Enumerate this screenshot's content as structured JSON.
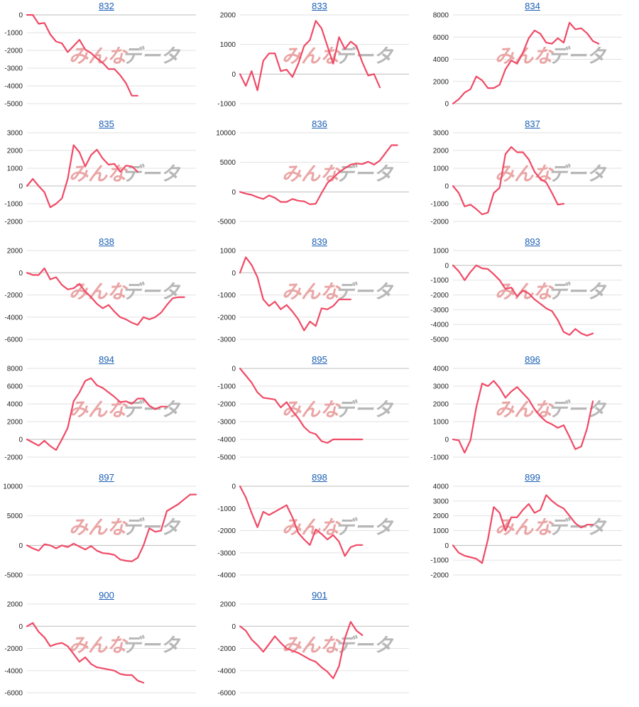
{
  "watermark": {
    "part1": "みんな",
    "part2": "データ"
  },
  "colors": {
    "series": "#f04a66",
    "title_link": "#1a5fb4",
    "grid": "#e2e2e2",
    "zero_line": "#bdbdbd"
  },
  "chart_data": [
    {
      "type": "line",
      "title": "832",
      "ylim": [
        -5000,
        0
      ],
      "yticks": [
        0,
        -1000,
        -2000,
        -3000,
        -4000,
        -5000
      ],
      "x": [
        1,
        2,
        3,
        4,
        5,
        6,
        7,
        8,
        9,
        10,
        11,
        12,
        13,
        14,
        15,
        16,
        17,
        18,
        19,
        20
      ],
      "values": [
        0,
        0,
        -500,
        -450,
        -1100,
        -1500,
        -1600,
        -2100,
        -1750,
        -1400,
        -1950,
        -2150,
        -2450,
        -2700,
        -3050,
        -3050,
        -3400,
        -3850,
        -4550,
        -4550
      ]
    },
    {
      "type": "line",
      "title": "833",
      "ylim": [
        -1000,
        2000
      ],
      "yticks": [
        2000,
        1000,
        0,
        -1000
      ],
      "x": [
        1,
        2,
        3,
        4,
        5,
        6,
        7,
        8,
        9,
        10,
        11,
        12,
        13,
        14,
        15,
        16,
        17,
        18,
        19,
        20,
        21,
        22,
        23,
        24,
        25
      ],
      "values": [
        0,
        -400,
        100,
        -550,
        450,
        700,
        700,
        100,
        150,
        -100,
        350,
        950,
        1150,
        1800,
        1550,
        950,
        350,
        1250,
        850,
        1100,
        950,
        400,
        -50,
        0,
        -450
      ]
    },
    {
      "type": "line",
      "title": "834",
      "ylim": [
        0,
        8000
      ],
      "yticks": [
        8000,
        6000,
        4000,
        2000,
        0
      ],
      "x": [
        1,
        2,
        3,
        4,
        5,
        6,
        7,
        8,
        9,
        10,
        11,
        12,
        13,
        14,
        15,
        16,
        17,
        18,
        19,
        20,
        21,
        22,
        23,
        24,
        25,
        26
      ],
      "values": [
        0,
        400,
        1000,
        1300,
        2450,
        2100,
        1400,
        1400,
        1700,
        3100,
        3900,
        3600,
        4600,
        5900,
        6600,
        6300,
        5500,
        5400,
        5900,
        5500,
        7300,
        6700,
        6800,
        6350,
        5650,
        5400
      ]
    },
    {
      "type": "line",
      "title": "835",
      "ylim": [
        -2000,
        3000
      ],
      "yticks": [
        3000,
        2000,
        1000,
        0,
        -1000,
        -2000
      ],
      "x": [
        1,
        2,
        3,
        4,
        5,
        6,
        7,
        8,
        9,
        10,
        11,
        12,
        13,
        14,
        15,
        16,
        17,
        18,
        19,
        20
      ],
      "values": [
        0,
        400,
        0,
        -350,
        -1200,
        -1000,
        -700,
        400,
        2300,
        1900,
        1100,
        1750,
        2050,
        1550,
        1200,
        1250,
        800,
        1150,
        1100,
        800
      ]
    },
    {
      "type": "line",
      "title": "836",
      "ylim": [
        -5000,
        10000
      ],
      "yticks": [
        10000,
        5000,
        0,
        -5000
      ],
      "x": [
        1,
        2,
        3,
        4,
        5,
        6,
        7,
        8,
        9,
        10,
        11,
        12,
        13,
        14,
        15,
        16,
        17,
        18,
        19,
        20,
        21,
        22,
        23,
        24,
        25,
        26,
        27,
        28
      ],
      "values": [
        0,
        -300,
        -500,
        -900,
        -1200,
        -600,
        -1000,
        -1700,
        -1700,
        -1200,
        -1500,
        -1600,
        -2100,
        -2000,
        -200,
        1500,
        2400,
        3300,
        4000,
        4600,
        4800,
        4700,
        5100,
        4600,
        5300,
        6600,
        7900,
        7900
      ]
    },
    {
      "type": "line",
      "title": "837",
      "ylim": [
        -2000,
        3000
      ],
      "yticks": [
        3000,
        2000,
        1000,
        0,
        -1000,
        -2000
      ],
      "x": [
        1,
        2,
        3,
        4,
        5,
        6,
        7,
        8,
        9,
        10,
        11,
        12,
        13,
        14,
        15,
        16,
        17,
        18,
        19,
        20
      ],
      "values": [
        0,
        -400,
        -1150,
        -1050,
        -1300,
        -1600,
        -1500,
        -400,
        -100,
        1800,
        2200,
        1900,
        1900,
        1500,
        800,
        400,
        200,
        -400,
        -1050,
        -1000
      ]
    },
    {
      "type": "line",
      "title": "838",
      "ylim": [
        -6000,
        2000
      ],
      "yticks": [
        2000,
        0,
        -2000,
        -4000,
        -6000
      ],
      "x": [
        1,
        2,
        3,
        4,
        5,
        6,
        7,
        8,
        9,
        10,
        11,
        12,
        13,
        14,
        15,
        16,
        17,
        18,
        19,
        20,
        21,
        22,
        23,
        24,
        25,
        26,
        27,
        28
      ],
      "values": [
        0,
        -200,
        -200,
        400,
        -600,
        -400,
        -1100,
        -1500,
        -1400,
        -1000,
        -1700,
        -2200,
        -2800,
        -3200,
        -2900,
        -3500,
        -4000,
        -4200,
        -4500,
        -4700,
        -4000,
        -4200,
        -4000,
        -3600,
        -2900,
        -2300,
        -2200,
        -2200
      ]
    },
    {
      "type": "line",
      "title": "839",
      "ylim": [
        -3000,
        1000
      ],
      "yticks": [
        1000,
        0,
        -1000,
        -2000,
        -3000
      ],
      "x": [
        1,
        2,
        3,
        4,
        5,
        6,
        7,
        8,
        9,
        10,
        11,
        12,
        13,
        14,
        15,
        16,
        17,
        18,
        19,
        20
      ],
      "values": [
        0,
        700,
        350,
        -200,
        -1200,
        -1500,
        -1300,
        -1650,
        -1450,
        -1750,
        -2100,
        -2600,
        -2200,
        -2400,
        -1600,
        -1650,
        -1500,
        -1200,
        -1200,
        -1200
      ]
    },
    {
      "type": "line",
      "title": "893",
      "ylim": [
        -5000,
        1000
      ],
      "yticks": [
        1000,
        0,
        -1000,
        -2000,
        -3000,
        -4000,
        -5000
      ],
      "x": [
        1,
        2,
        3,
        4,
        5,
        6,
        7,
        8,
        9,
        10,
        11,
        12,
        13,
        14,
        15,
        16,
        17,
        18,
        19,
        20,
        21,
        22,
        23,
        24,
        25
      ],
      "values": [
        0,
        -400,
        -1000,
        -450,
        0,
        -200,
        -250,
        -600,
        -1000,
        -1600,
        -1500,
        -2100,
        -1700,
        -1900,
        -2300,
        -2600,
        -2900,
        -3100,
        -3700,
        -4500,
        -4700,
        -4300,
        -4600,
        -4750,
        -4600
      ]
    },
    {
      "type": "line",
      "title": "894",
      "ylim": [
        -2000,
        8000
      ],
      "yticks": [
        8000,
        6000,
        4000,
        2000,
        0,
        -2000
      ],
      "x": [
        1,
        2,
        3,
        4,
        5,
        6,
        7,
        8,
        9,
        10,
        11,
        12,
        13,
        14,
        15,
        16,
        17,
        18,
        19,
        20,
        21,
        22,
        23,
        24,
        25
      ],
      "values": [
        0,
        -350,
        -700,
        -150,
        -750,
        -1200,
        0,
        1300,
        4300,
        5300,
        6600,
        6900,
        6100,
        5800,
        5300,
        4800,
        4200,
        4300,
        4000,
        4600,
        4600,
        3800,
        3400,
        3700,
        3700
      ]
    },
    {
      "type": "line",
      "title": "895",
      "ylim": [
        -5000,
        0
      ],
      "yticks": [
        0,
        -1000,
        -2000,
        -3000,
        -4000,
        -5000
      ],
      "x": [
        1,
        2,
        3,
        4,
        5,
        6,
        7,
        8,
        9,
        10,
        11,
        12,
        13,
        14,
        15,
        16,
        17,
        18,
        19,
        20,
        21,
        22
      ],
      "values": [
        0,
        -400,
        -800,
        -1350,
        -1650,
        -1700,
        -1750,
        -2200,
        -1900,
        -2400,
        -2800,
        -3300,
        -3600,
        -3700,
        -4100,
        -4200,
        -4000,
        -4000,
        -4000,
        -4000,
        -4000,
        -4000
      ]
    },
    {
      "type": "line",
      "title": "896",
      "ylim": [
        -1000,
        4000
      ],
      "yticks": [
        4000,
        3000,
        2000,
        1000,
        0,
        -1000
      ],
      "x": [
        1,
        2,
        3,
        4,
        5,
        6,
        7,
        8,
        9,
        10,
        11,
        12,
        13,
        14,
        15,
        16,
        17,
        18,
        19,
        20,
        21,
        22,
        23,
        24,
        25
      ],
      "values": [
        0,
        -50,
        -750,
        -50,
        1800,
        3150,
        3000,
        3300,
        2900,
        2350,
        2700,
        2950,
        2600,
        2250,
        1700,
        1300,
        1000,
        850,
        650,
        800,
        150,
        -550,
        -400,
        600,
        2150
      ]
    },
    {
      "type": "line",
      "title": "897",
      "ylim": [
        -5000,
        10000
      ],
      "yticks": [
        10000,
        5000,
        0,
        -5000
      ],
      "x": [
        1,
        2,
        3,
        4,
        5,
        6,
        7,
        8,
        9,
        10,
        11,
        12,
        13,
        14,
        15,
        16,
        17,
        18,
        19,
        20,
        21,
        22,
        23,
        24,
        25,
        26,
        27,
        28,
        29,
        30
      ],
      "values": [
        0,
        -500,
        -900,
        200,
        0,
        -500,
        0,
        -300,
        300,
        -200,
        -700,
        -100,
        -900,
        -1300,
        -1400,
        -1600,
        -2400,
        -2600,
        -2700,
        -2100,
        0,
        2900,
        2300,
        2500,
        5800,
        6400,
        7000,
        7800,
        8600,
        8600
      ]
    },
    {
      "type": "line",
      "title": "898",
      "ylim": [
        -4000,
        0
      ],
      "yticks": [
        0,
        -1000,
        -2000,
        -3000,
        -4000
      ],
      "x": [
        1,
        2,
        3,
        4,
        5,
        6,
        7,
        8,
        9,
        10,
        11,
        12,
        13,
        14,
        15,
        16,
        17,
        18,
        19,
        20,
        21,
        22
      ],
      "values": [
        0,
        -500,
        -1200,
        -1850,
        -1150,
        -1300,
        -1150,
        -1000,
        -850,
        -1400,
        -2100,
        -2400,
        -2650,
        -1950,
        -2150,
        -2400,
        -2200,
        -2500,
        -3150,
        -2750,
        -2650,
        -2650
      ]
    },
    {
      "type": "line",
      "title": "899",
      "ylim": [
        -2000,
        4000
      ],
      "yticks": [
        4000,
        3000,
        2000,
        1000,
        0,
        -1000,
        -2000
      ],
      "x": [
        1,
        2,
        3,
        4,
        5,
        6,
        7,
        8,
        9,
        10,
        11,
        12,
        13,
        14,
        15,
        16,
        17,
        18,
        19,
        20,
        21,
        22,
        23,
        24,
        25
      ],
      "values": [
        0,
        -500,
        -700,
        -800,
        -900,
        -1200,
        400,
        2600,
        2200,
        1000,
        1900,
        1900,
        2400,
        2800,
        2200,
        2400,
        3400,
        3000,
        2700,
        2500,
        2000,
        1500,
        1200,
        1400,
        1400
      ]
    },
    {
      "type": "line",
      "title": "900",
      "ylim": [
        -6000,
        2000
      ],
      "yticks": [
        2000,
        0,
        -2000,
        -4000,
        -6000
      ],
      "x": [
        1,
        2,
        3,
        4,
        5,
        6,
        7,
        8,
        9,
        10,
        11,
        12,
        13,
        14,
        15,
        16,
        17,
        18,
        19,
        20,
        21
      ],
      "values": [
        0,
        300,
        -500,
        -1000,
        -1800,
        -1600,
        -1500,
        -1800,
        -2500,
        -3200,
        -2800,
        -3400,
        -3700,
        -3800,
        -3900,
        -4000,
        -4300,
        -4400,
        -4400,
        -4900,
        -5100
      ]
    },
    {
      "type": "line",
      "title": "901",
      "ylim": [
        -6000,
        2000
      ],
      "yticks": [
        2000,
        0,
        -2000,
        -4000,
        -6000
      ],
      "x": [
        1,
        2,
        3,
        4,
        5,
        6,
        7,
        8,
        9,
        10,
        11,
        12,
        13,
        14,
        15,
        16,
        17,
        18,
        19,
        20,
        21,
        22
      ],
      "values": [
        0,
        -400,
        -1200,
        -1700,
        -2300,
        -1600,
        -900,
        -1500,
        -2000,
        -2200,
        -2400,
        -2700,
        -3000,
        -3200,
        -3700,
        -4100,
        -4700,
        -3600,
        -1100,
        400,
        -400,
        -800
      ]
    }
  ]
}
